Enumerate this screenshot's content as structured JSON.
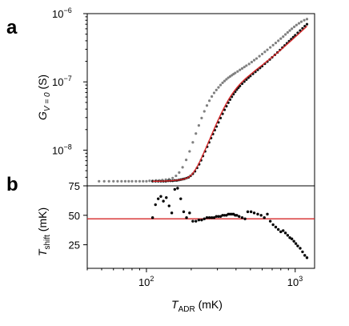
{
  "figure": {
    "panel_letters": [
      "a",
      "b"
    ]
  },
  "chart_data": [
    {
      "panel": "a",
      "type": "scatter",
      "ylabel": {
        "main": "G",
        "sub": "V = 0",
        "unit": " (S)"
      },
      "y_scale": "log",
      "ylim": [
        3e-09,
        1e-06
      ],
      "x_scale": "log",
      "xlim": [
        40,
        1350
      ],
      "y_ticks": [
        {
          "value": 1e-08,
          "label": "10",
          "exp": "−8"
        },
        {
          "value": 1e-07,
          "label": "10",
          "exp": "−7"
        },
        {
          "value": 1e-06,
          "label": "10",
          "exp": "−6"
        }
      ],
      "grid": false,
      "colors": {
        "grey_series": "#808080",
        "black_series": "#111111",
        "fit_line": "#d62728"
      },
      "series": [
        {
          "color": "grey",
          "x": [
            48,
            52,
            56,
            60,
            64,
            68,
            72,
            76,
            80,
            85,
            90,
            95,
            100,
            105,
            110,
            116,
            122,
            128,
            135,
            142,
            150,
            158,
            166,
            175,
            185,
            195,
            205,
            215,
            225,
            235,
            245,
            255,
            265,
            275,
            285,
            295,
            305,
            315,
            325,
            335,
            345,
            355,
            365,
            375,
            385,
            395,
            410,
            425,
            440,
            455,
            470,
            490,
            510,
            530,
            550,
            575,
            600,
            625,
            650,
            680,
            710,
            740,
            770,
            800,
            830,
            860,
            890,
            920,
            950,
            985,
            1020,
            1060,
            1100,
            1150,
            1200
          ],
          "y": [
            3.5e-09,
            3.5e-09,
            3.5e-09,
            3.5e-09,
            3.5e-09,
            3.5e-09,
            3.5e-09,
            3.5e-09,
            3.5e-09,
            3.5e-09,
            3.5e-09,
            3.5e-09,
            3.5e-09,
            3.55e-09,
            3.55e-09,
            3.6e-09,
            3.6e-09,
            3.65e-09,
            3.7e-09,
            3.75e-09,
            3.9e-09,
            4.2e-09,
            4.7e-09,
            5.6e-09,
            7.2e-09,
            9.6e-09,
            1.3e-08,
            1.75e-08,
            2.3e-08,
            2.95e-08,
            3.7e-08,
            4.5e-08,
            5.3e-08,
            6.1e-08,
            6.9e-08,
            7.6e-08,
            8.3e-08,
            9e-08,
            9.7e-08,
            1.03e-07,
            1.09e-07,
            1.15e-07,
            1.2e-07,
            1.25e-07,
            1.3e-07,
            1.35e-07,
            1.42e-07,
            1.5e-07,
            1.57e-07,
            1.65e-07,
            1.73e-07,
            1.83e-07,
            1.95e-07,
            2.08e-07,
            2.2e-07,
            2.38e-07,
            2.56e-07,
            2.75e-07,
            2.95e-07,
            3.2e-07,
            3.45e-07,
            3.72e-07,
            4e-07,
            4.3e-07,
            4.6e-07,
            4.95e-07,
            5.3e-07,
            5.65e-07,
            6e-07,
            6.4e-07,
            6.8e-07,
            7.2e-07,
            7.6e-07,
            8e-07,
            8.3e-07
          ]
        },
        {
          "color": "black",
          "x": [
            110,
            115,
            120,
            125,
            130,
            135,
            140,
            145,
            150,
            155,
            160,
            165,
            170,
            175,
            180,
            186,
            192,
            198,
            205,
            212,
            219,
            226,
            233,
            240,
            248,
            256,
            264,
            272,
            280,
            288,
            296,
            305,
            315,
            325,
            335,
            345,
            355,
            365,
            375,
            385,
            395,
            405,
            415,
            425,
            440,
            455,
            470,
            485,
            500,
            520,
            540,
            560,
            580,
            600,
            625,
            650,
            675,
            700,
            730,
            760,
            790,
            820,
            850,
            880,
            910,
            940,
            970,
            1000,
            1040,
            1080,
            1120,
            1160,
            1200
          ],
          "y": [
            3.5e-09,
            3.5e-09,
            3.5e-09,
            3.5e-09,
            3.5e-09,
            3.5e-09,
            3.55e-09,
            3.55e-09,
            3.55e-09,
            3.6e-09,
            3.6e-09,
            3.65e-09,
            3.7e-09,
            3.75e-09,
            3.8e-09,
            3.9e-09,
            4e-09,
            4.2e-09,
            4.5e-09,
            4.9e-09,
            5.5e-09,
            6.2e-09,
            7.1e-09,
            8.2e-09,
            9.6e-09,
            1.12e-08,
            1.3e-08,
            1.5e-08,
            1.72e-08,
            1.96e-08,
            2.22e-08,
            2.55e-08,
            2.95e-08,
            3.4e-08,
            3.9e-08,
            4.4e-08,
            4.95e-08,
            5.5e-08,
            6.05e-08,
            6.6e-08,
            7.15e-08,
            7.7e-08,
            8.2e-08,
            8.7e-08,
            9.4e-08,
            1.01e-07,
            1.08e-07,
            1.15e-07,
            1.22e-07,
            1.31e-07,
            1.4e-07,
            1.5e-07,
            1.6e-07,
            1.7e-07,
            1.84e-07,
            1.98e-07,
            2.13e-07,
            2.29e-07,
            2.49e-07,
            2.7e-07,
            2.93e-07,
            3.17e-07,
            3.42e-07,
            3.68e-07,
            3.95e-07,
            4.23e-07,
            4.52e-07,
            4.82e-07,
            5.23e-07,
            5.65e-07,
            6.1e-07,
            6.55e-07,
            7e-07
          ]
        },
        {
          "type": "line",
          "color": "red",
          "x": [
            110,
            120,
            130,
            140,
            150,
            160,
            170,
            180,
            190,
            200,
            210,
            220,
            230,
            240,
            250,
            260,
            270,
            280,
            290,
            300,
            315,
            330,
            345,
            360,
            375,
            390,
            405,
            420,
            440,
            460,
            480,
            500,
            525,
            550,
            575,
            600,
            630,
            660,
            690,
            720,
            750,
            790,
            830,
            870,
            910,
            950,
            1000,
            1050,
            1100,
            1150,
            1200
          ],
          "y": [
            3.5e-09,
            3.5e-09,
            3.52e-09,
            3.55e-09,
            3.58e-09,
            3.62e-09,
            3.68e-09,
            3.78e-09,
            3.95e-09,
            4.3e-09,
            4.9e-09,
            5.8e-09,
            7e-09,
            8.6e-09,
            1.05e-08,
            1.28e-08,
            1.55e-08,
            1.86e-08,
            2.22e-08,
            2.62e-08,
            3.3e-08,
            4.05e-08,
            4.85e-08,
            5.7e-08,
            6.55e-08,
            7.4e-08,
            8.2e-08,
            9e-08,
            1e-07,
            1.1e-07,
            1.19e-07,
            1.28e-07,
            1.4e-07,
            1.52e-07,
            1.64e-07,
            1.76e-07,
            1.92e-07,
            2.08e-07,
            2.25e-07,
            2.43e-07,
            2.62e-07,
            2.88e-07,
            3.16e-07,
            3.46e-07,
            3.78e-07,
            4.1e-07,
            4.55e-07,
            5e-07,
            5.5e-07,
            6e-07,
            6.55e-07
          ]
        }
      ]
    },
    {
      "panel": "b",
      "type": "scatter",
      "ylabel": {
        "main": "T",
        "sub": "shift",
        "unit": " (mK)"
      },
      "y_scale": "linear",
      "ylim": [
        5,
        75
      ],
      "x_scale": "log",
      "xlim": [
        40,
        1350
      ],
      "xlabel": {
        "main": "T",
        "sub": "ADR",
        "unit": " (mK)"
      },
      "y_ticks": [
        25,
        50,
        75
      ],
      "x_ticks": [
        {
          "value": 100,
          "label": "10",
          "exp": "2"
        },
        {
          "value": 1000,
          "label": "10",
          "exp": "3"
        }
      ],
      "grid": false,
      "colors": {
        "points": "#000000",
        "reference_line": "#d62728"
      },
      "reference_line": {
        "y": 47
      },
      "series": [
        {
          "color": "black",
          "x": [
            110,
            115,
            120,
            125,
            130,
            136,
            142,
            148,
            155,
            162,
            170,
            178,
            186,
            195,
            205,
            215,
            225,
            235,
            245,
            255,
            265,
            275,
            285,
            295,
            305,
            315,
            325,
            335,
            345,
            355,
            365,
            375,
            385,
            395,
            405,
            420,
            440,
            460,
            480,
            505,
            530,
            560,
            590,
            620,
            650,
            680,
            710,
            740,
            770,
            800,
            830,
            860,
            890,
            920,
            950,
            980,
            1010,
            1040,
            1080,
            1120,
            1160,
            1200
          ],
          "y": [
            48,
            59,
            64,
            66,
            62,
            65,
            58,
            52,
            72,
            73,
            64,
            53,
            48,
            52,
            45,
            45,
            46,
            46,
            47,
            48,
            48,
            48,
            48,
            49,
            49,
            49,
            50,
            50,
            50,
            51,
            51,
            51,
            51,
            50,
            50,
            49,
            48,
            47,
            53,
            53,
            52,
            51,
            50,
            48,
            51,
            45,
            42,
            40,
            38,
            36,
            37,
            35,
            33,
            31,
            30,
            28,
            26,
            24,
            22,
            19,
            16,
            14
          ]
        }
      ]
    }
  ]
}
